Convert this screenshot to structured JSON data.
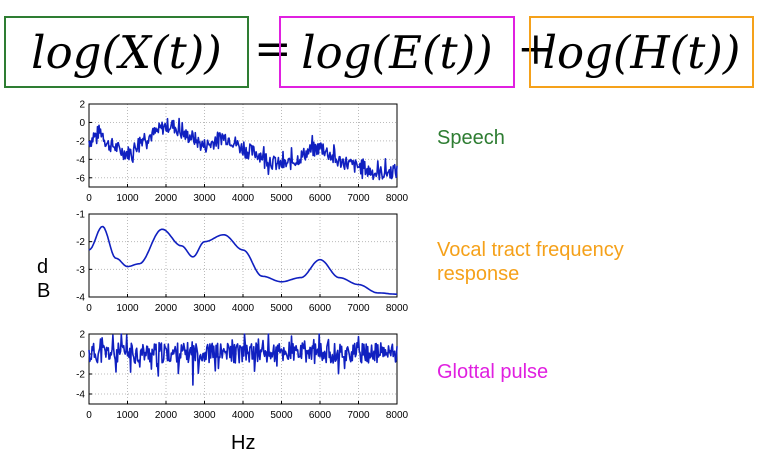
{
  "equation": {
    "terms": [
      {
        "text": "log(X(t))",
        "color": "#2e7d32"
      },
      {
        "text": "log(E(t))",
        "color": "#e020e0"
      },
      {
        "text": "log(H(t))",
        "color": "#f5a11a"
      }
    ],
    "equals": "=",
    "plus": "+"
  },
  "labels": {
    "speech": {
      "text": "Speech",
      "color": "#2e7d32"
    },
    "vocal_line1": {
      "text": "Vocal tract frequency",
      "color": "#f5a11a"
    },
    "vocal_line2": {
      "text": "response",
      "color": "#f5a11a"
    },
    "glottal": {
      "text": "Glottal pulse",
      "color": "#e020e0"
    }
  },
  "axis": {
    "ylabel_line1": "d",
    "ylabel_line2": "B",
    "xlabel": "Hz"
  },
  "chart_data": [
    {
      "type": "line",
      "name": "speech",
      "xlim": [
        0,
        8000
      ],
      "ylim": [
        -7,
        2
      ],
      "xticks": [
        0,
        1000,
        2000,
        3000,
        4000,
        5000,
        6000,
        7000,
        8000
      ],
      "yticks": [
        2,
        0,
        -2,
        -4,
        -6
      ],
      "grid": true,
      "line_color": "#1020c0",
      "envelope": [
        [
          0,
          -2
        ],
        [
          300,
          -1
        ],
        [
          500,
          -2.4
        ],
        [
          1000,
          -3.3
        ],
        [
          1500,
          -1.5
        ],
        [
          2100,
          -0.3
        ],
        [
          2600,
          -1.5
        ],
        [
          3000,
          -2.5
        ],
        [
          3500,
          -1.6
        ],
        [
          4200,
          -3.2
        ],
        [
          5000,
          -4.6
        ],
        [
          6000,
          -2.8
        ],
        [
          6500,
          -4.2
        ],
        [
          7000,
          -4.8
        ],
        [
          7500,
          -5.5
        ],
        [
          8000,
          -5.3
        ]
      ],
      "noise": 1.0,
      "seed": 7
    },
    {
      "type": "line",
      "name": "vocal-tract",
      "xlim": [
        0,
        8000
      ],
      "ylim": [
        -4,
        -1
      ],
      "xticks": [
        0,
        1000,
        2000,
        3000,
        4000,
        5000,
        6000,
        7000,
        8000
      ],
      "yticks": [
        -1,
        -2,
        -3,
        -4
      ],
      "grid": true,
      "line_color": "#1020c0",
      "envelope": [
        [
          0,
          -2.3
        ],
        [
          350,
          -1.45
        ],
        [
          700,
          -2.6
        ],
        [
          1000,
          -2.9
        ],
        [
          1300,
          -2.8
        ],
        [
          1900,
          -1.55
        ],
        [
          2400,
          -2.15
        ],
        [
          2700,
          -2.55
        ],
        [
          3000,
          -2.0
        ],
        [
          3500,
          -1.75
        ],
        [
          4000,
          -2.3
        ],
        [
          4500,
          -3.25
        ],
        [
          5000,
          -3.45
        ],
        [
          5500,
          -3.3
        ],
        [
          6000,
          -2.65
        ],
        [
          6500,
          -3.3
        ],
        [
          7000,
          -3.55
        ],
        [
          7500,
          -3.85
        ],
        [
          8000,
          -3.9
        ]
      ],
      "noise": 0,
      "seed": 3
    },
    {
      "type": "line",
      "name": "glottal",
      "xlim": [
        0,
        8000
      ],
      "ylim": [
        -5,
        2
      ],
      "xticks": [
        0,
        1000,
        2000,
        3000,
        4000,
        5000,
        6000,
        7000,
        8000
      ],
      "yticks": [
        2,
        0,
        -2,
        -4
      ],
      "grid": true,
      "line_color": "#1020c0",
      "envelope": [
        [
          0,
          0.1
        ],
        [
          8000,
          0.1
        ]
      ],
      "noise": 1.3,
      "spikes": [
        [
          700,
          -1.8
        ],
        [
          1800,
          -2.2
        ],
        [
          2700,
          -3.1
        ],
        [
          4400,
          1.5
        ],
        [
          6250,
          -4.1
        ],
        [
          5600,
          1.3
        ]
      ],
      "seed": 11
    }
  ]
}
